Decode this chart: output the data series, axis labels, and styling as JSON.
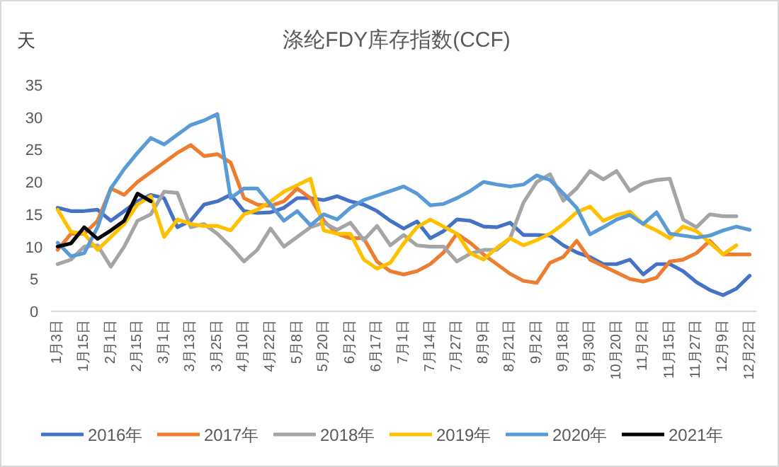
{
  "chart_data": {
    "type": "line",
    "title": "涤纶FDY库存指数(CCF)",
    "ylabel": "天",
    "categories": [
      "1月3日",
      null,
      "1月15日",
      null,
      "2月1日",
      null,
      "2月15日",
      null,
      "3月1日",
      null,
      "3月13日",
      null,
      "3月25日",
      null,
      "4月10日",
      null,
      "4月22日",
      null,
      "5月8日",
      null,
      "5月20日",
      null,
      "6月2日",
      null,
      "6月17日",
      null,
      "7月1日",
      null,
      "7月14日",
      null,
      "7月27日",
      null,
      "8月9日",
      null,
      "8月21日",
      null,
      "9月2日",
      null,
      "9月18日",
      null,
      "9月30日",
      null,
      "10月20日",
      null,
      "11月2日",
      null,
      "11月15日",
      null,
      "11月27日",
      null,
      "12月9日",
      null,
      "12月22日"
    ],
    "ylim": [
      0,
      35
    ],
    "yticks": [
      0,
      5,
      10,
      15,
      20,
      25,
      30,
      35
    ],
    "grid": false,
    "legend": "bottom",
    "marker": "none",
    "line_style": "solid",
    "series": [
      {
        "name": "2016年",
        "color": "#4472c4",
        "values": [
          16,
          15.5,
          15.5,
          15.7,
          14,
          15.5,
          17,
          18,
          17.5,
          13,
          14,
          16.5,
          17,
          18,
          15.5,
          15.2,
          15.3,
          16,
          17.5,
          17.5,
          17.2,
          17.8,
          17,
          16.5,
          15.5,
          14,
          12.8,
          13.9,
          11.3,
          12.4,
          14.2,
          14,
          13.1,
          13,
          13.7,
          11.8,
          11.8,
          11.7,
          10.2,
          9.1,
          8.4,
          7.3,
          7.3,
          8,
          5.7,
          7.3,
          7.3,
          6.2,
          4.5,
          3.3,
          2.5,
          3.5,
          5.5
        ]
      },
      {
        "name": "2017年",
        "color": "#ed7d31",
        "values": [
          9.5,
          12,
          12,
          14,
          19,
          18,
          20,
          21.5,
          23,
          24.5,
          25.7,
          24,
          24.3,
          23,
          17.5,
          16.5,
          16.3,
          17,
          19,
          17.5,
          14,
          12,
          11.3,
          11.3,
          7.7,
          6.2,
          5.7,
          6.2,
          7.3,
          9.1,
          12,
          10.6,
          8.8,
          7.3,
          5.8,
          4.7,
          4.4,
          7.5,
          8.4,
          10.9,
          8,
          7,
          6,
          5,
          4.6,
          5.2,
          7.7,
          8,
          9,
          10.9,
          8.8,
          8.8,
          8.8
        ]
      },
      {
        "name": "2018年",
        "color": "#a5a5a5",
        "values": [
          7.3,
          8,
          10,
          10.2,
          6.9,
          10,
          14,
          15,
          18.5,
          18.3,
          13,
          13.5,
          12,
          10,
          7.7,
          9.5,
          12.8,
          10,
          11.5,
          13,
          13.7,
          12.6,
          13.7,
          11,
          13.2,
          10.2,
          11.8,
          10.2,
          10,
          10,
          7.7,
          8.9,
          9.5,
          9.5,
          11.3,
          16.8,
          20,
          21.2,
          17.1,
          19,
          21.7,
          20.4,
          21.7,
          18.6,
          19.8,
          20.3,
          20.5,
          14.2,
          13,
          15,
          14.7,
          14.7,
          null
        ]
      },
      {
        "name": "2019年",
        "color": "#ffc000",
        "values": [
          15.7,
          12.3,
          12,
          9.5,
          11.5,
          13.5,
          16.5,
          17.8,
          11.5,
          14.2,
          13.5,
          13.2,
          13.2,
          12.5,
          15,
          15.7,
          17,
          18.5,
          19.5,
          20.5,
          12.5,
          12,
          12,
          8,
          6.6,
          7.5,
          10.5,
          13,
          14.2,
          13.1,
          12,
          9,
          8,
          9.8,
          11.3,
          10.2,
          11,
          12,
          13.5,
          15.3,
          16.2,
          14,
          14.9,
          15.4,
          13.5,
          12.5,
          11.3,
          13.1,
          12.4,
          10.6,
          8.8,
          10.2,
          null
        ]
      },
      {
        "name": "2020年",
        "color": "#5b9bd5",
        "values": [
          10.6,
          8.5,
          9,
          13,
          19,
          22,
          24.5,
          26.8,
          25.8,
          27.3,
          28.8,
          29.5,
          30.5,
          17.5,
          19,
          19,
          16.5,
          14,
          15.5,
          13.3,
          15,
          14.2,
          16,
          17.2,
          17.9,
          18.6,
          19.3,
          18.2,
          16.4,
          16.6,
          17.5,
          18.6,
          20,
          19.6,
          19.3,
          19.6,
          21,
          20.3,
          18.2,
          16,
          11.9,
          13,
          14.2,
          14.9,
          13.5,
          15.3,
          12,
          11.7,
          11.4,
          11.7,
          12.5,
          13.1,
          12.6
        ]
      },
      {
        "name": "2021年",
        "color": "#000000",
        "values": [
          10,
          10.5,
          13,
          11.2,
          12.5,
          14,
          18.2,
          17,
          null,
          null,
          null,
          null,
          null,
          null,
          null,
          null,
          null,
          null,
          null,
          null,
          null,
          null,
          null,
          null,
          null,
          null,
          null,
          null,
          null,
          null,
          null,
          null,
          null,
          null,
          null,
          null,
          null,
          null,
          null,
          null,
          null,
          null,
          null,
          null,
          null,
          null,
          null,
          null,
          null,
          null,
          null,
          null,
          null
        ]
      }
    ]
  }
}
